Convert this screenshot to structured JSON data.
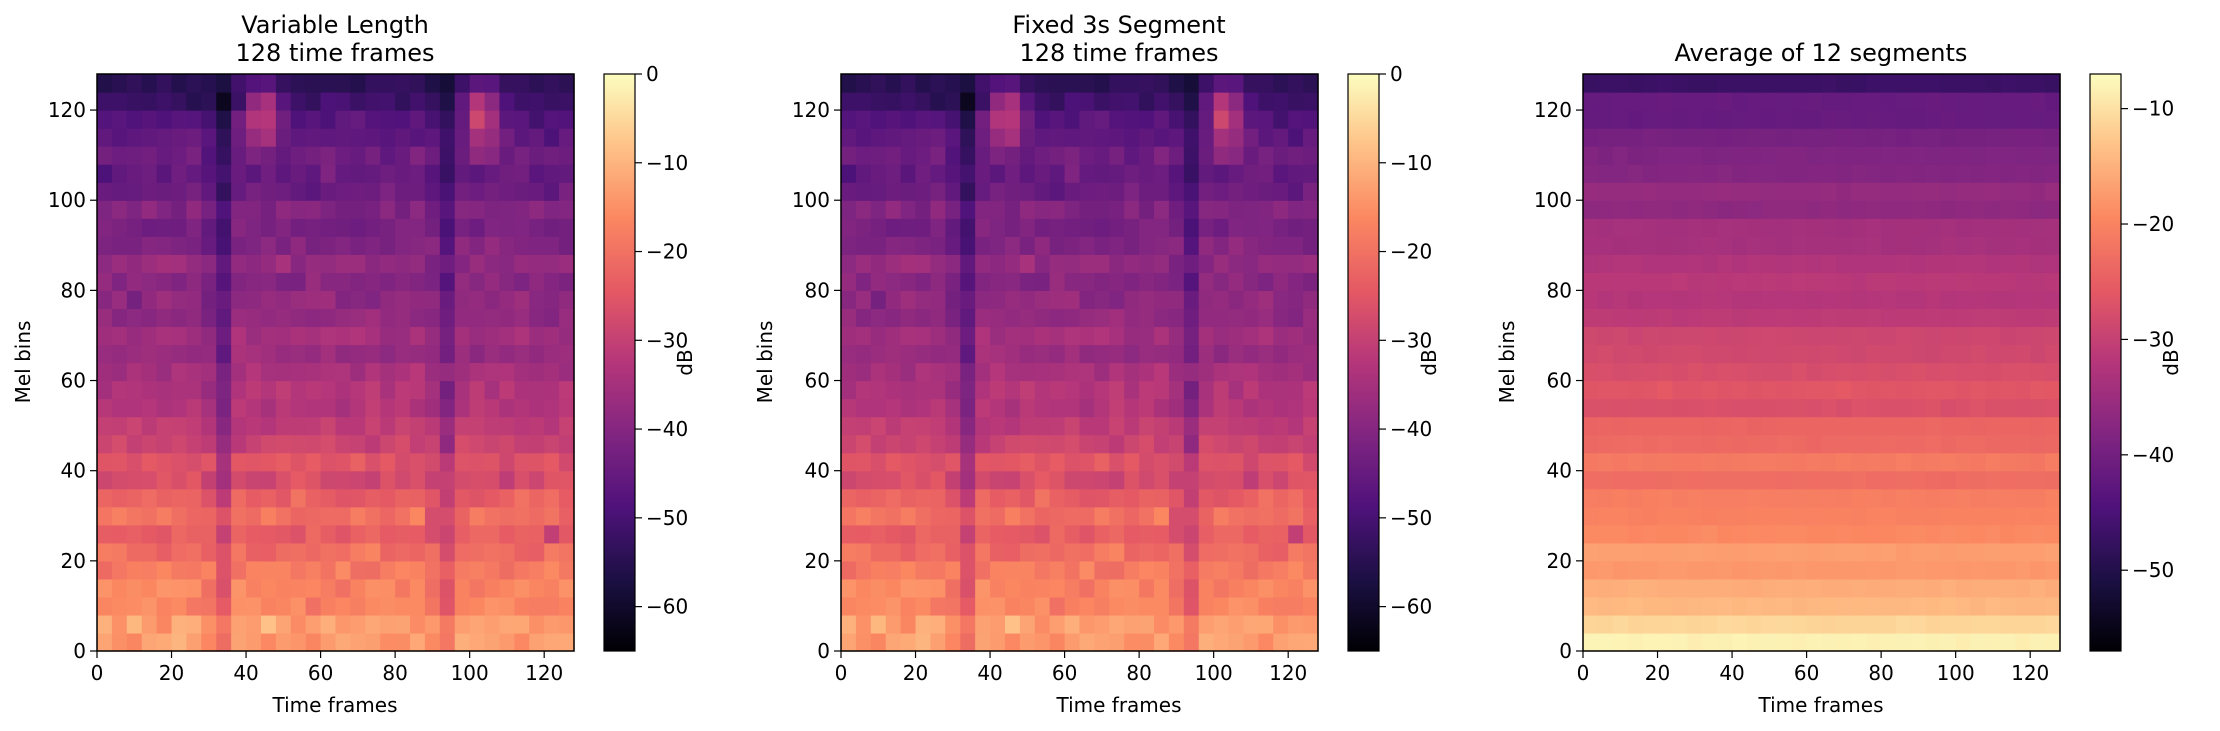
{
  "chart_data": [
    {
      "type": "heatmap",
      "title": [
        "Variable Length",
        "128 time frames"
      ],
      "xlabel": "Time frames",
      "ylabel": "Mel bins",
      "x_range": [
        0,
        128
      ],
      "y_range": [
        0,
        128
      ],
      "x_ticks": [
        0,
        20,
        40,
        60,
        80,
        100,
        120
      ],
      "y_ticks": [
        0,
        20,
        40,
        60,
        80,
        100,
        120
      ],
      "grid": "128x128 time-frame by mel-bin matrix (values in dB)",
      "colormap": "magma",
      "colorbar": {
        "label": "dB",
        "range": [
          -65,
          0
        ],
        "ticks": [
          0,
          -10,
          -20,
          -30,
          -40,
          -50,
          -60
        ]
      }
    },
    {
      "type": "heatmap",
      "title": [
        "Fixed 3s Segment",
        "128 time frames"
      ],
      "xlabel": "Time frames",
      "ylabel": "Mel bins",
      "x_range": [
        0,
        128
      ],
      "y_range": [
        0,
        128
      ],
      "x_ticks": [
        0,
        20,
        40,
        60,
        80,
        100,
        120
      ],
      "y_ticks": [
        0,
        20,
        40,
        60,
        80,
        100,
        120
      ],
      "grid": "128x128 time-frame by mel-bin matrix (values in dB)",
      "colormap": "magma",
      "colorbar": {
        "label": "dB",
        "range": [
          -65,
          0
        ],
        "ticks": [
          0,
          -10,
          -20,
          -30,
          -40,
          -50,
          -60
        ]
      }
    },
    {
      "type": "heatmap",
      "title": [
        "Average of 12 segments"
      ],
      "xlabel": "Time frames",
      "ylabel": "Mel bins",
      "x_range": [
        0,
        128
      ],
      "y_range": [
        0,
        128
      ],
      "x_ticks": [
        0,
        20,
        40,
        60,
        80,
        100,
        120
      ],
      "y_ticks": [
        0,
        20,
        40,
        60,
        80,
        100,
        120
      ],
      "grid": "128x128 time-frame by mel-bin matrix (values in dB)",
      "colormap": "magma",
      "colorbar": {
        "label": "dB",
        "range": [
          -57,
          -7
        ],
        "ticks": [
          -10,
          -20,
          -30,
          -40,
          -50
        ]
      }
    }
  ],
  "colors": {
    "magma_stops": [
      "#000004",
      "#1c1044",
      "#4f127b",
      "#812581",
      "#b5367a",
      "#e55964",
      "#fb8761",
      "#fec287",
      "#fcfdbf"
    ]
  }
}
